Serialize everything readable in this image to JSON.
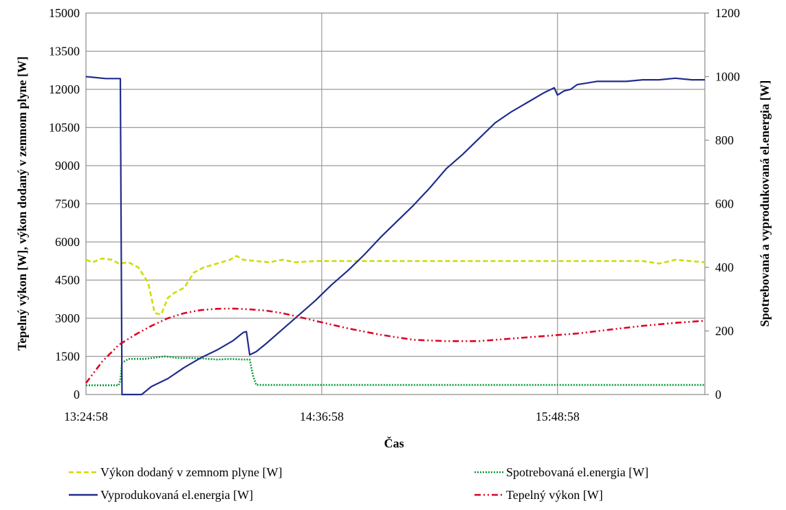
{
  "chart_data": {
    "type": "line",
    "title": "",
    "xlabel": "Čas",
    "ylabel_left": "Tepelný výkon [W], výkon dodaný v zemnom plyne [W]",
    "ylabel_right": "Spotrebovaná a vyprodukovaná el.energia [W]",
    "ylim_left": [
      0,
      15000
    ],
    "ylim_right": [
      0,
      1200
    ],
    "yticks_left": [
      0,
      1500,
      3000,
      4500,
      6000,
      7500,
      9000,
      10500,
      12000,
      13500,
      15000
    ],
    "yticks_right": [
      0,
      200,
      400,
      600,
      800,
      1000,
      1200
    ],
    "x_tick_labels": [
      "13:24:58",
      "14:36:58",
      "15:48:58"
    ],
    "x_minutes_range": [
      0,
      189
    ],
    "x_tick_minutes": [
      0,
      72,
      144
    ],
    "grid": true,
    "legend_position": "bottom",
    "x_unit": "minutes from 13:24:58",
    "series": [
      {
        "name": "Výkon dodaný v zemnom plyne [W]",
        "axis": "left",
        "color": "#ccdd00",
        "style": "dashed",
        "x": [
          0,
          2,
          5,
          8,
          10,
          13,
          16,
          19,
          21,
          23,
          25,
          27,
          30,
          33,
          36,
          40,
          44,
          46,
          48,
          52,
          56,
          60,
          64,
          70,
          80,
          90,
          100,
          110,
          120,
          130,
          140,
          150,
          160,
          170,
          175,
          180,
          189
        ],
        "values": [
          5300,
          5200,
          5350,
          5300,
          5150,
          5200,
          5000,
          4400,
          3200,
          3150,
          3800,
          4000,
          4200,
          4800,
          5000,
          5150,
          5300,
          5450,
          5300,
          5250,
          5200,
          5300,
          5200,
          5250,
          5250,
          5250,
          5250,
          5250,
          5250,
          5250,
          5250,
          5250,
          5250,
          5250,
          5150,
          5300,
          5200
        ]
      },
      {
        "name": "Spotrebovaná el.energia [W]",
        "axis": "right",
        "color": "#009933",
        "style": "dotted",
        "x": [
          0,
          10,
          10.5,
          11,
          13,
          18,
          24,
          28,
          32,
          36,
          40,
          44,
          48,
          50,
          51,
          52,
          60,
          100,
          140,
          189
        ],
        "values": [
          29,
          29,
          45,
          100,
          112,
          112,
          120,
          115,
          115,
          113,
          110,
          112,
          110,
          110,
          60,
          30,
          30,
          30,
          30,
          30
        ]
      },
      {
        "name": "Vyprodukovaná el.energia [W]",
        "axis": "right",
        "color": "#1f2a8c",
        "style": "solid",
        "x": [
          0,
          2,
          6,
          10.5,
          11,
          16,
          17,
          20,
          25,
          30,
          35,
          40,
          45,
          48,
          49,
          50,
          52,
          55,
          60,
          65,
          70,
          75,
          80,
          85,
          90,
          95,
          100,
          105,
          110,
          115,
          120,
          125,
          130,
          135,
          140,
          143,
          144,
          146,
          148,
          150,
          153,
          156,
          160,
          165,
          170,
          175,
          180,
          185,
          189
        ],
        "values": [
          1000,
          998,
          994,
          994,
          0,
          0,
          0,
          25,
          50,
          85,
          115,
          140,
          170,
          195,
          198,
          125,
          135,
          160,
          205,
          250,
          295,
          345,
          390,
          440,
          495,
          545,
          595,
          650,
          710,
          755,
          805,
          855,
          890,
          920,
          950,
          965,
          942,
          955,
          960,
          975,
          980,
          985,
          985,
          985,
          990,
          990,
          995,
          990,
          990
        ]
      },
      {
        "name": "Tepelný výkon [W]",
        "axis": "left",
        "color": "#dd0022",
        "style": "dash-dot-dot",
        "x": [
          0,
          5,
          10,
          15,
          20,
          25,
          30,
          35,
          40,
          45,
          50,
          55,
          60,
          65,
          70,
          75,
          80,
          90,
          100,
          110,
          120,
          130,
          140,
          150,
          160,
          170,
          180,
          189
        ],
        "values": [
          450,
          1300,
          1950,
          2350,
          2700,
          3000,
          3200,
          3320,
          3370,
          3380,
          3350,
          3300,
          3200,
          3050,
          2900,
          2750,
          2600,
          2350,
          2150,
          2100,
          2100,
          2200,
          2300,
          2400,
          2550,
          2700,
          2820,
          2900
        ]
      }
    ]
  },
  "legend": {
    "items": [
      {
        "label": "Výkon dodaný v zemnom plyne [W]",
        "color": "#ccdd00",
        "style": "dashed"
      },
      {
        "label": "Spotrebovaná el.energia [W]",
        "color": "#009933",
        "style": "dotted"
      },
      {
        "label": "Vyprodukovaná el.energia [W]",
        "color": "#1f2a8c",
        "style": "solid"
      },
      {
        "label": "Tepelný výkon [W]",
        "color": "#dd0022",
        "style": "dash-dot-dot"
      }
    ]
  }
}
